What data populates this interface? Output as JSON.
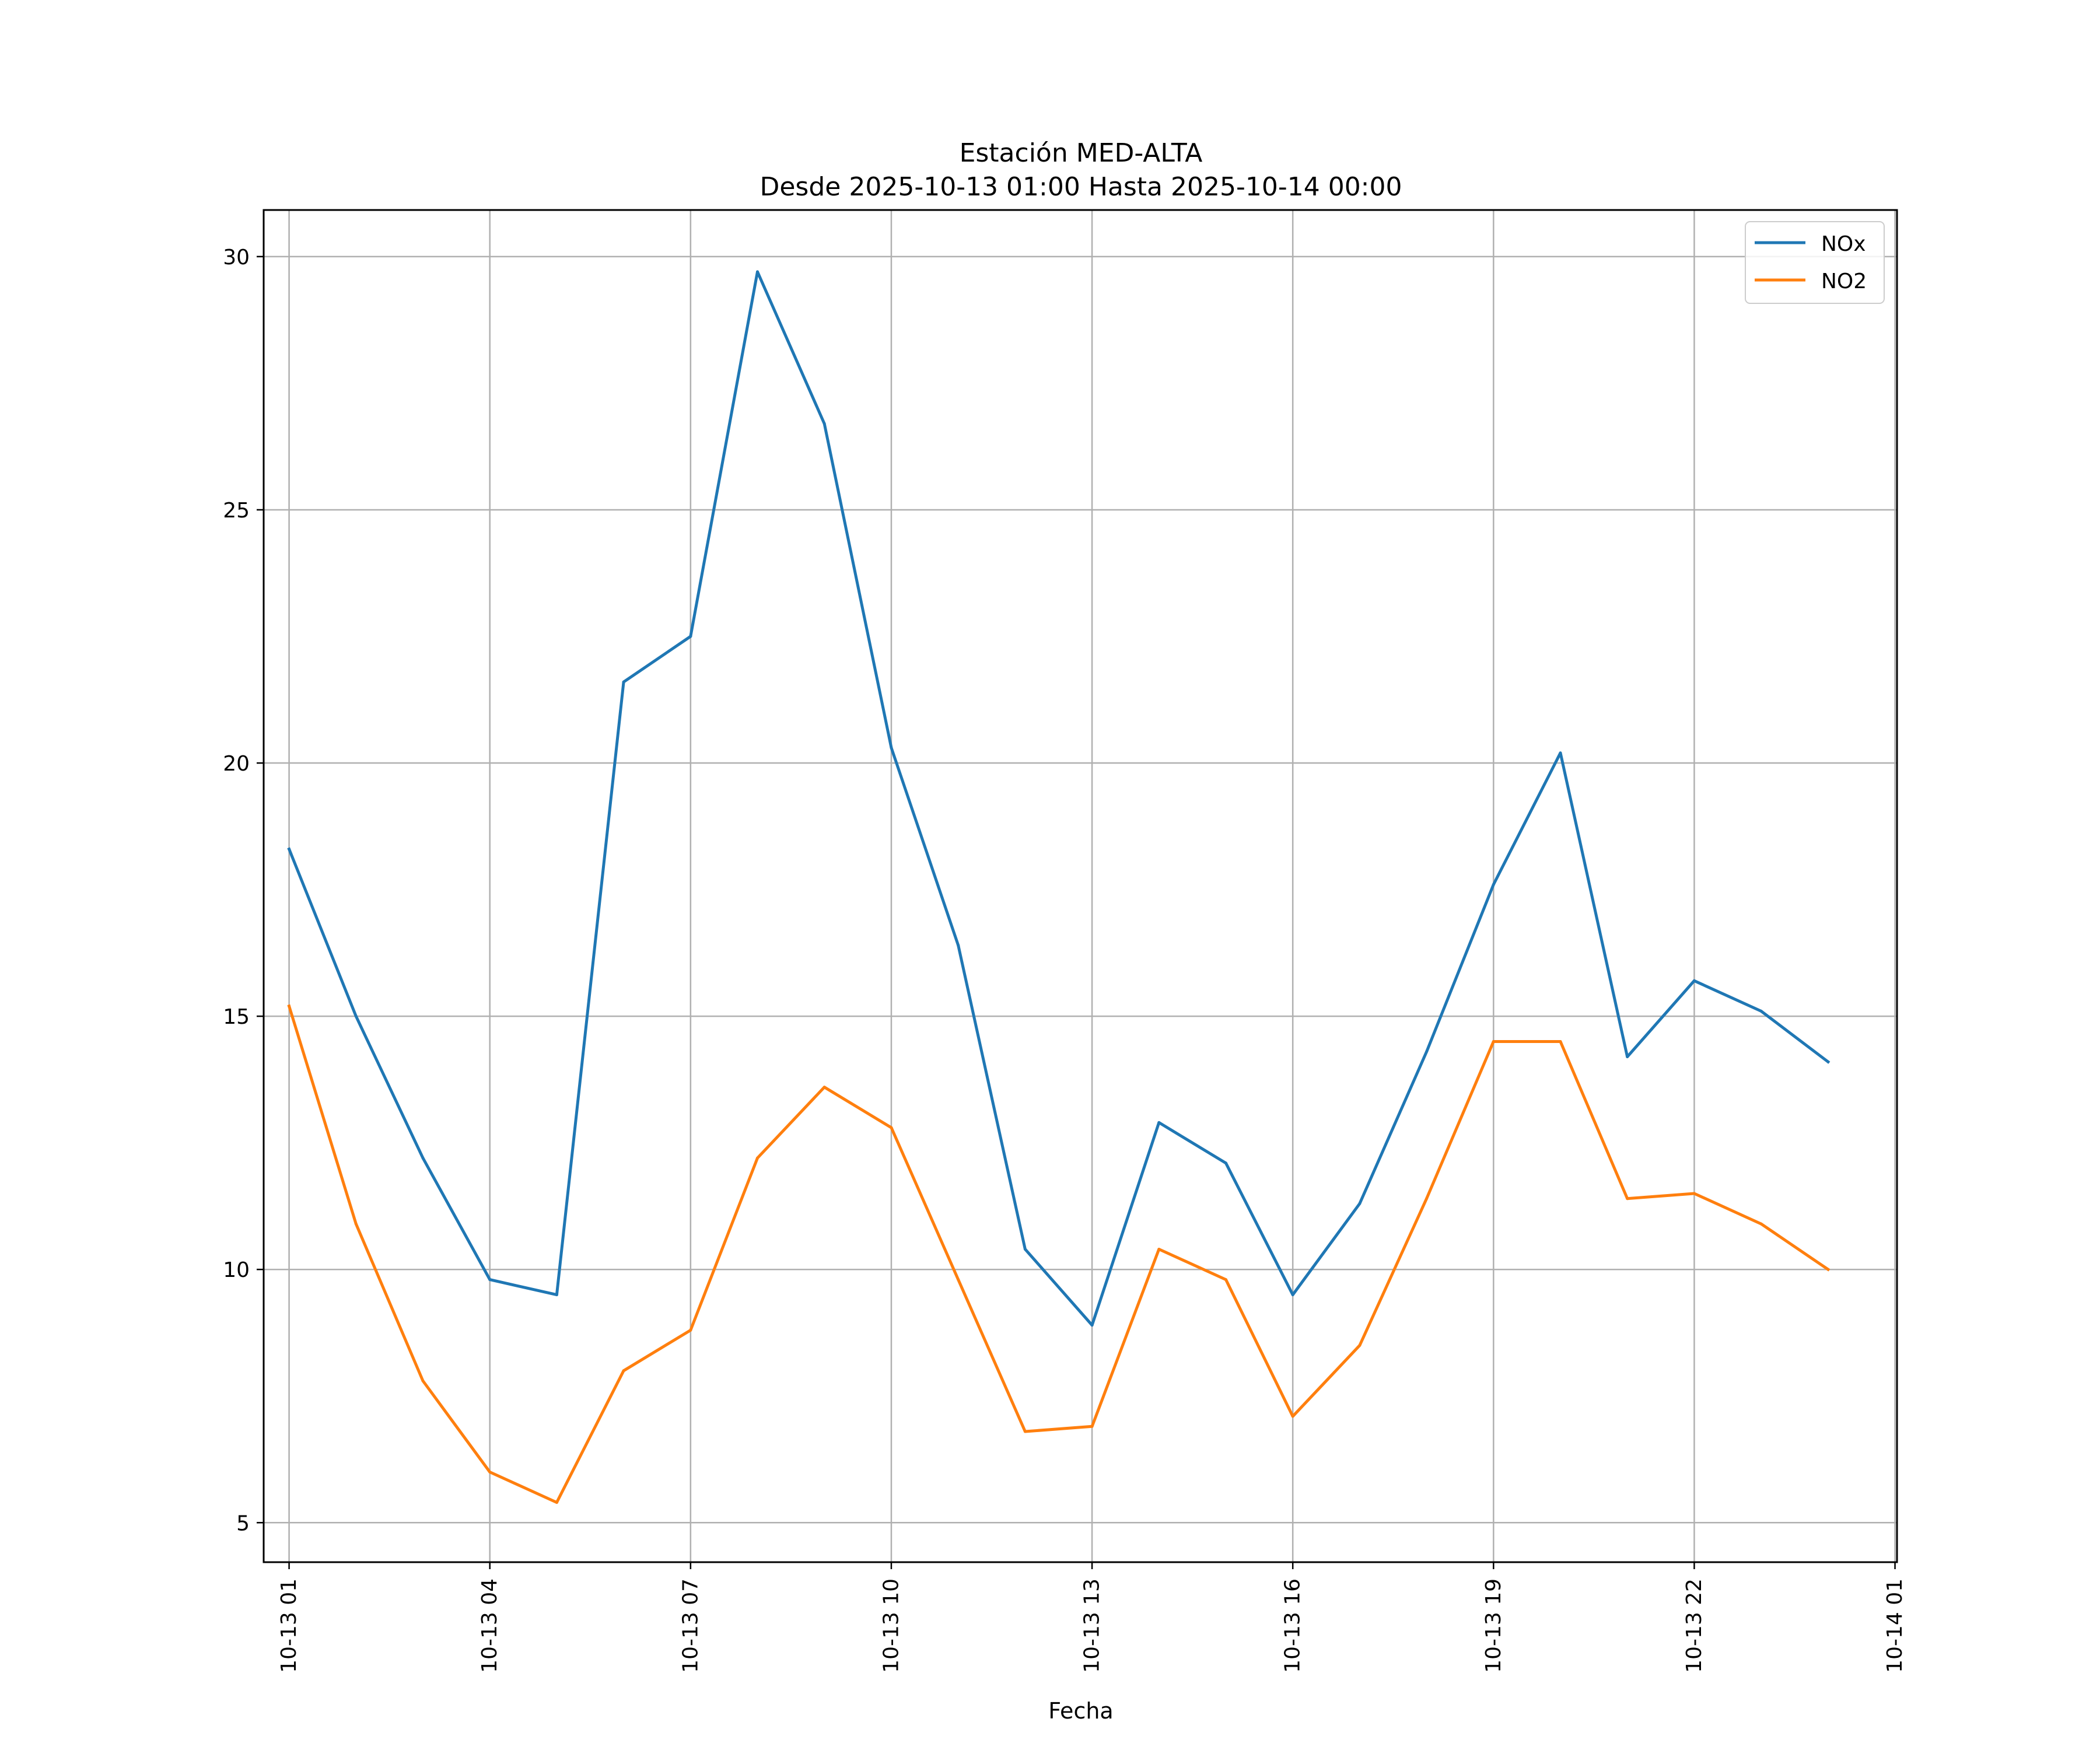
{
  "chart_data": {
    "type": "line",
    "title": "Estación MED-ALTA",
    "subtitle": "Desde 2025-10-13 01:00 Hasta 2025-10-14 00:00",
    "xlabel": "Fecha",
    "ylabel": "",
    "x": [
      "01:00",
      "02:00",
      "03:00",
      "04:00",
      "05:00",
      "06:00",
      "07:00",
      "08:00",
      "09:00",
      "10:00",
      "11:00",
      "12:00",
      "13:00",
      "14:00",
      "15:00",
      "16:00",
      "17:00",
      "18:00",
      "19:00",
      "20:00",
      "21:00",
      "22:00",
      "23:00",
      "00:00"
    ],
    "x_hours": [
      1,
      2,
      3,
      4,
      5,
      6,
      7,
      8,
      9,
      10,
      11,
      12,
      13,
      14,
      15,
      16,
      17,
      18,
      19,
      20,
      21,
      22,
      23,
      24
    ],
    "xlim": [
      0.62,
      25.03
    ],
    "ylim": [
      4.22,
      30.92
    ],
    "xticks": [
      {
        "hour": 1,
        "label": "10-13 01"
      },
      {
        "hour": 4,
        "label": "10-13 04"
      },
      {
        "hour": 7,
        "label": "10-13 07"
      },
      {
        "hour": 10,
        "label": "10-13 10"
      },
      {
        "hour": 13,
        "label": "10-13 13"
      },
      {
        "hour": 16,
        "label": "10-13 16"
      },
      {
        "hour": 19,
        "label": "10-13 19"
      },
      {
        "hour": 22,
        "label": "10-13 22"
      },
      {
        "hour": 25,
        "label": "10-14 01"
      }
    ],
    "yticks": [
      5,
      10,
      15,
      20,
      25,
      30
    ],
    "grid": true,
    "legend_position": "top-right",
    "series": [
      {
        "name": "NOx",
        "color": "#1f77b4",
        "values": [
          18.3,
          15.0,
          12.2,
          9.8,
          9.5,
          21.6,
          22.5,
          29.7,
          26.7,
          20.3,
          16.4,
          10.4,
          8.9,
          12.9,
          12.1,
          9.5,
          11.3,
          14.3,
          17.6,
          20.2,
          14.2,
          15.7,
          15.1,
          14.1
        ]
      },
      {
        "name": "NO2",
        "color": "#ff7f0e",
        "values": [
          15.2,
          10.9,
          7.8,
          6.0,
          5.4,
          8.0,
          8.8,
          12.2,
          13.6,
          12.8,
          9.8,
          6.8,
          6.9,
          10.4,
          9.8,
          7.1,
          8.5,
          11.4,
          14.5,
          14.5,
          11.4,
          11.5,
          10.9,
          10.0
        ]
      }
    ]
  }
}
